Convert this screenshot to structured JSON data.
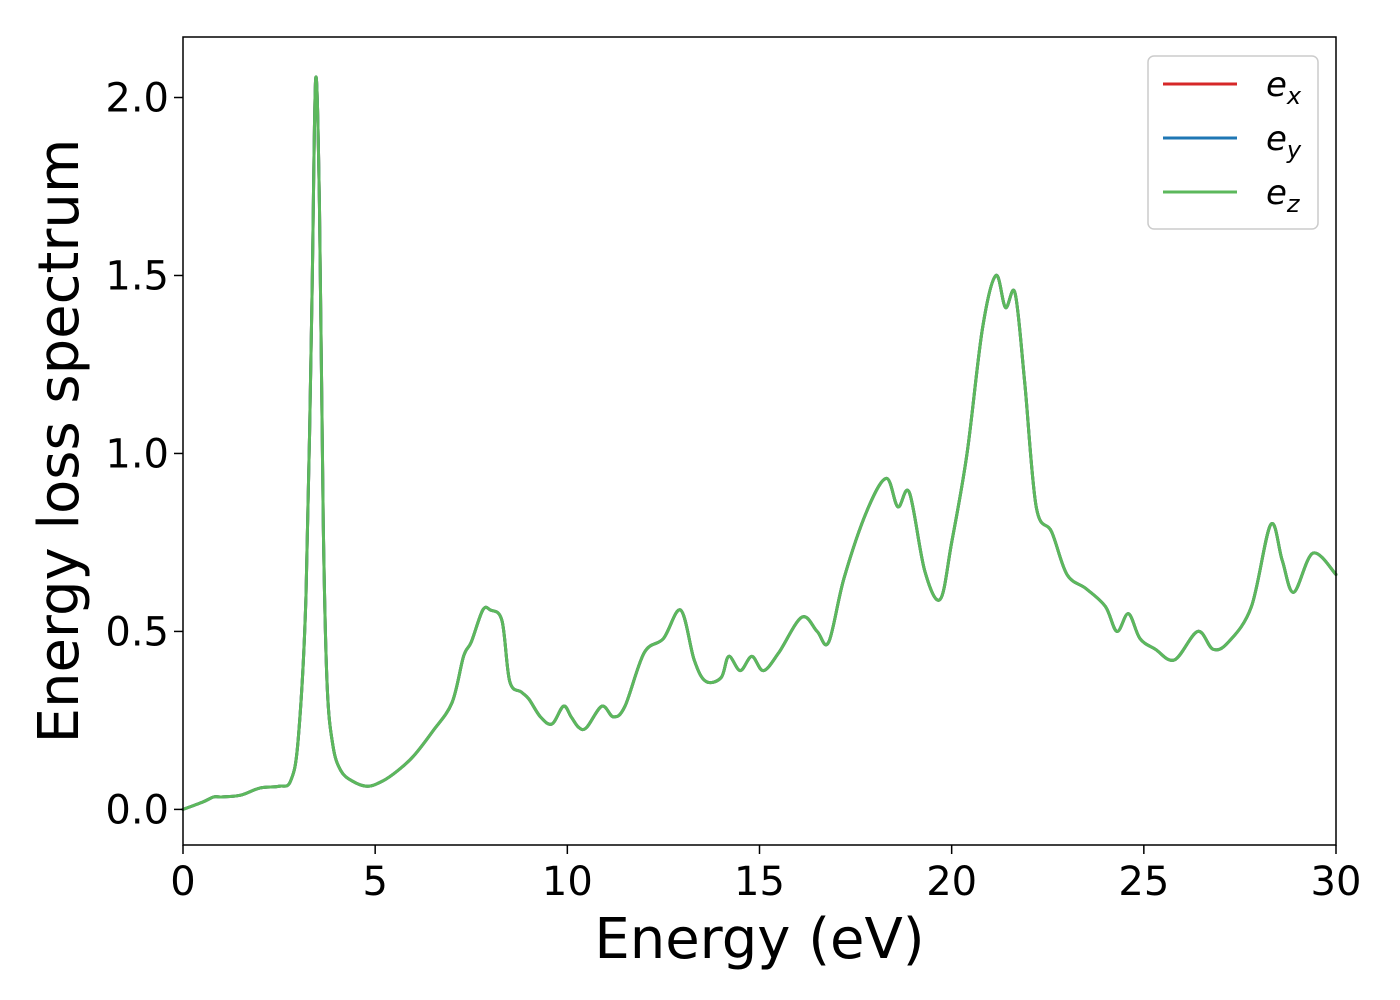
{
  "chart_data": {
    "type": "line",
    "xlabel": "Energy (eV)",
    "ylabel": "Energy loss spectrum",
    "xlim": [
      0,
      30
    ],
    "ylim": [
      -0.1,
      2.17
    ],
    "xticks": [
      0,
      5,
      10,
      15,
      20,
      25,
      30
    ],
    "xtick_labels": [
      "0",
      "5",
      "10",
      "15",
      "20",
      "25",
      "30"
    ],
    "yticks": [
      0.0,
      0.5,
      1.0,
      1.5,
      2.0
    ],
    "ytick_labels": [
      "0.0",
      "0.5",
      "1.0",
      "1.5",
      "2.0"
    ],
    "grid": false,
    "legend_position": "top-right",
    "x": [
      0,
      0.5,
      0.8,
      1.0,
      1.5,
      2.0,
      2.5,
      2.8,
      3.0,
      3.2,
      3.35,
      3.45,
      3.55,
      3.65,
      3.75,
      3.9,
      4.1,
      4.4,
      4.8,
      5.2,
      5.6,
      6.0,
      6.5,
      7.0,
      7.3,
      7.5,
      7.8,
      8.0,
      8.3,
      8.5,
      8.8,
      9.0,
      9.3,
      9.6,
      9.9,
      10.1,
      10.3,
      10.5,
      10.9,
      11.2,
      11.5,
      12.0,
      12.5,
      12.95,
      13.3,
      13.6,
      14.0,
      14.2,
      14.5,
      14.8,
      15.1,
      15.5,
      16.1,
      16.5,
      16.8,
      17.2,
      17.8,
      18.3,
      18.6,
      18.9,
      19.3,
      19.7,
      20.0,
      20.4,
      20.8,
      21.15,
      21.4,
      21.65,
      21.9,
      22.2,
      22.6,
      23.0,
      23.5,
      24.0,
      24.3,
      24.6,
      24.9,
      25.3,
      25.8,
      26.4,
      26.8,
      27.2,
      27.8,
      28.3,
      28.6,
      28.9,
      29.4,
      30.0
    ],
    "series": [
      {
        "name": "e_x",
        "color": "#d62728",
        "values": [
          0.0,
          0.02,
          0.035,
          0.035,
          0.04,
          0.06,
          0.065,
          0.08,
          0.2,
          0.6,
          1.4,
          2.05,
          1.7,
          0.8,
          0.35,
          0.18,
          0.11,
          0.08,
          0.065,
          0.08,
          0.11,
          0.15,
          0.22,
          0.3,
          0.43,
          0.47,
          0.56,
          0.56,
          0.53,
          0.36,
          0.33,
          0.31,
          0.26,
          0.24,
          0.29,
          0.26,
          0.23,
          0.23,
          0.29,
          0.26,
          0.29,
          0.44,
          0.48,
          0.56,
          0.42,
          0.36,
          0.37,
          0.43,
          0.39,
          0.43,
          0.39,
          0.44,
          0.54,
          0.5,
          0.47,
          0.65,
          0.84,
          0.93,
          0.85,
          0.89,
          0.67,
          0.59,
          0.75,
          1.0,
          1.35,
          1.5,
          1.41,
          1.45,
          1.2,
          0.85,
          0.78,
          0.66,
          0.62,
          0.57,
          0.5,
          0.55,
          0.48,
          0.45,
          0.42,
          0.5,
          0.45,
          0.47,
          0.57,
          0.8,
          0.7,
          0.61,
          0.72,
          0.66
        ]
      },
      {
        "name": "e_y",
        "color": "#1f77b4",
        "values": [
          0.0,
          0.02,
          0.035,
          0.035,
          0.04,
          0.06,
          0.065,
          0.08,
          0.2,
          0.6,
          1.4,
          2.05,
          1.7,
          0.8,
          0.35,
          0.18,
          0.11,
          0.08,
          0.065,
          0.08,
          0.11,
          0.15,
          0.22,
          0.3,
          0.43,
          0.47,
          0.56,
          0.56,
          0.53,
          0.36,
          0.33,
          0.31,
          0.26,
          0.24,
          0.29,
          0.26,
          0.23,
          0.23,
          0.29,
          0.26,
          0.29,
          0.44,
          0.48,
          0.56,
          0.42,
          0.36,
          0.37,
          0.43,
          0.39,
          0.43,
          0.39,
          0.44,
          0.54,
          0.5,
          0.47,
          0.65,
          0.84,
          0.93,
          0.85,
          0.89,
          0.67,
          0.59,
          0.75,
          1.0,
          1.35,
          1.5,
          1.41,
          1.45,
          1.2,
          0.85,
          0.78,
          0.66,
          0.62,
          0.57,
          0.5,
          0.55,
          0.48,
          0.45,
          0.42,
          0.5,
          0.45,
          0.47,
          0.57,
          0.8,
          0.7,
          0.61,
          0.72,
          0.66
        ]
      },
      {
        "name": "e_z",
        "color": "#5cb85c",
        "values": [
          0.0,
          0.02,
          0.035,
          0.035,
          0.04,
          0.06,
          0.065,
          0.08,
          0.2,
          0.6,
          1.4,
          2.05,
          1.7,
          0.8,
          0.35,
          0.18,
          0.11,
          0.08,
          0.065,
          0.08,
          0.11,
          0.15,
          0.22,
          0.3,
          0.43,
          0.47,
          0.56,
          0.56,
          0.53,
          0.36,
          0.33,
          0.31,
          0.26,
          0.24,
          0.29,
          0.26,
          0.23,
          0.23,
          0.29,
          0.26,
          0.29,
          0.44,
          0.48,
          0.56,
          0.42,
          0.36,
          0.37,
          0.43,
          0.39,
          0.43,
          0.39,
          0.44,
          0.54,
          0.5,
          0.47,
          0.65,
          0.84,
          0.93,
          0.85,
          0.89,
          0.67,
          0.59,
          0.75,
          1.0,
          1.35,
          1.5,
          1.41,
          1.45,
          1.2,
          0.85,
          0.78,
          0.66,
          0.62,
          0.57,
          0.5,
          0.55,
          0.48,
          0.45,
          0.42,
          0.5,
          0.45,
          0.47,
          0.57,
          0.8,
          0.7,
          0.61,
          0.72,
          0.66
        ]
      }
    ],
    "legend": [
      {
        "base": "e",
        "sub": "x",
        "color": "#d62728"
      },
      {
        "base": "e",
        "sub": "y",
        "color": "#1f77b4"
      },
      {
        "base": "e",
        "sub": "z",
        "color": "#5cb85c"
      }
    ]
  }
}
